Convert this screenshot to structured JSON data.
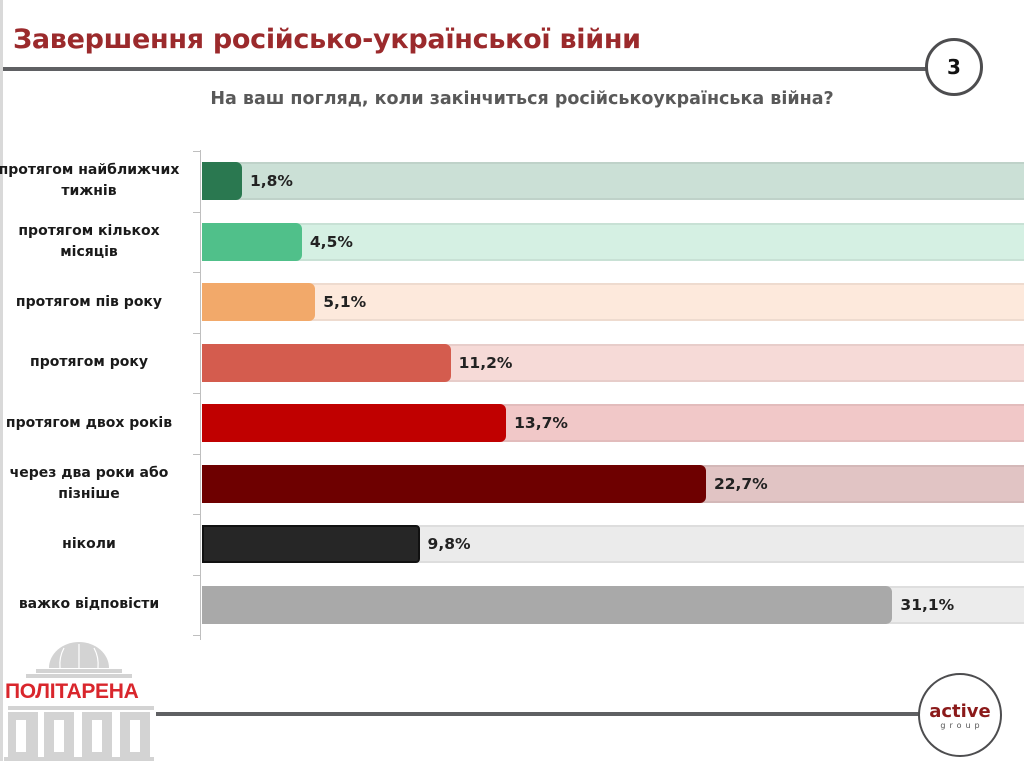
{
  "header": {
    "title": "Завершення російсько-української війни",
    "page_number": "3"
  },
  "chart_data": {
    "type": "bar",
    "orientation": "horizontal",
    "title": "На ваш погляд, коли закінчиться російськоукраїнська війна?",
    "xlabel": "",
    "ylabel": "",
    "unit": "%",
    "grid": false,
    "legend": "none",
    "categories": [
      "протягом найближчих тижнів",
      "протягом кількох місяців",
      "протягом пів року",
      "протягом року",
      "протягом двох років",
      "через два роки або пізніше",
      "ніколи",
      "важко відповісти"
    ],
    "values": [
      1.8,
      4.5,
      5.1,
      11.2,
      13.7,
      22.7,
      9.8,
      31.1
    ],
    "value_labels": [
      "1,8%",
      "4,5%",
      "5,1%",
      "11,2%",
      "13,7%",
      "22,7%",
      "9,8%",
      "31,1%"
    ],
    "colors": [
      "#2a7850",
      "#50c08a",
      "#f2a96a",
      "#d45c4e",
      "#c00000",
      "#6e0000",
      "#262626",
      "#a9a9a9"
    ],
    "track_colors": [
      "#cbe0d6",
      "#d5f0e3",
      "#fde9dc",
      "#f6dad7",
      "#f1c8c8",
      "#e1c4c4",
      "#ebebeb",
      "#ececec"
    ]
  },
  "footer": {
    "left_logo_text": "ПОЛІТАРЕНА",
    "right_logo_word1": "active",
    "right_logo_word2": "group"
  }
}
